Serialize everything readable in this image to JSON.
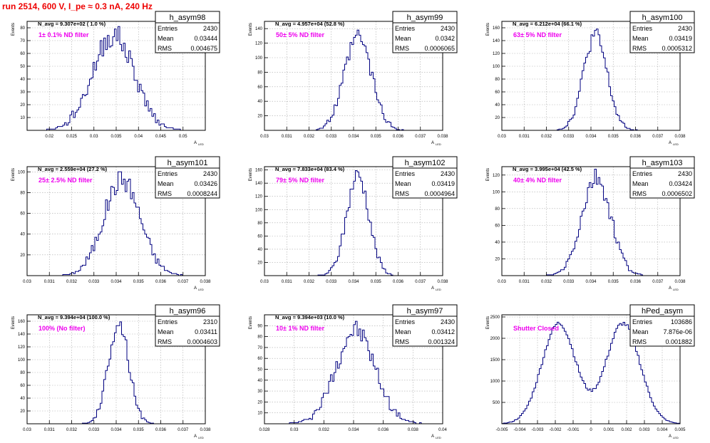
{
  "page": {
    "run_title": "run 2514,   600 V, I_pe ≈ 0.3 nA, 240 Hz",
    "colors": {
      "histogram": "#000080",
      "title": "#ee0000",
      "filter_label": "#ee00ee",
      "grid": "#aaaaaa"
    }
  },
  "chart_data": [
    {
      "type": "histogram",
      "name": "h_asym98",
      "navg": "N_avg = 9.307e+02 ( 1.0 %)",
      "filter": "1± 0.1% ND filter",
      "stats": {
        "entries": "2430",
        "mean": "0.03444",
        "rms": "0.004675"
      },
      "xlabel": "A",
      "xlabel_sub": "LED",
      "ylabel": "Events",
      "xlim": [
        0.015,
        0.055
      ],
      "ylim": [
        0,
        85
      ],
      "xticks": [
        0.02,
        0.025,
        0.03,
        0.035,
        0.04,
        0.045,
        0.05
      ],
      "xtick_labels": [
        "0.02",
        "0.025",
        "0.03",
        "0.035",
        "0.04",
        "0.045",
        "0.05"
      ],
      "yticks": [
        10,
        20,
        30,
        40,
        50,
        60,
        70,
        80
      ],
      "ytick_labels": [
        "10",
        "20",
        "30",
        "40",
        "50",
        "60",
        "70",
        "80"
      ],
      "shape": {
        "centers": [
          0.0344
        ],
        "sigmas": [
          0.0047
        ],
        "weights": [
          1
        ],
        "peak": 74,
        "bins": 100,
        "seed": 98
      }
    },
    {
      "type": "histogram",
      "name": "h_asym99",
      "navg": "N_avg = 4.957e+04 (52.8 %)",
      "filter": "50± 5% ND filter",
      "stats": {
        "entries": "2430",
        "mean": "0.0342",
        "rms": "0.0006065"
      },
      "xlabel": "A",
      "xlabel_sub": "LED",
      "ylabel": "Events",
      "xlim": [
        0.03,
        0.038
      ],
      "ylim": [
        0,
        150
      ],
      "xticks": [
        0.03,
        0.031,
        0.032,
        0.033,
        0.034,
        0.035,
        0.036,
        0.037,
        0.038
      ],
      "xtick_labels": [
        "0.03",
        "0.031",
        "0.032",
        "0.033",
        "0.034",
        "0.035",
        "0.036",
        "0.037",
        "0.038"
      ],
      "yticks": [
        20,
        40,
        60,
        80,
        100,
        120,
        140
      ],
      "ytick_labels": [
        "20",
        "40",
        "60",
        "80",
        "100",
        "120",
        "140"
      ],
      "shape": {
        "centers": [
          0.0342
        ],
        "sigmas": [
          0.00061
        ],
        "weights": [
          1
        ],
        "peak": 128,
        "bins": 100,
        "seed": 99
      }
    },
    {
      "type": "histogram",
      "name": "h_asym100",
      "navg": "N_avg = 6.212e+04 (66.1 %)",
      "filter": "63± 5% ND filter",
      "stats": {
        "entries": "2430",
        "mean": "0.03419",
        "rms": "0.0005312"
      },
      "xlabel": "A",
      "xlabel_sub": "LED",
      "ylabel": "Events",
      "xlim": [
        0.03,
        0.038
      ],
      "ylim": [
        0,
        170
      ],
      "xticks": [
        0.03,
        0.031,
        0.032,
        0.033,
        0.034,
        0.035,
        0.036,
        0.037,
        0.038
      ],
      "xtick_labels": [
        "0.03",
        "0.031",
        "0.032",
        "0.033",
        "0.034",
        "0.035",
        "0.036",
        "0.037",
        "0.038"
      ],
      "yticks": [
        20,
        40,
        60,
        80,
        100,
        120,
        140,
        160
      ],
      "ytick_labels": [
        "20",
        "40",
        "60",
        "80",
        "100",
        "120",
        "140",
        "160"
      ],
      "shape": {
        "centers": [
          0.03419
        ],
        "sigmas": [
          0.00053
        ],
        "weights": [
          1
        ],
        "peak": 148,
        "bins": 100,
        "seed": 100
      }
    },
    {
      "type": "histogram",
      "name": "h_asym101",
      "navg": "N_avg = 2.559e+04 (27.2 %)",
      "filter": "25± 2.5% ND filter",
      "stats": {
        "entries": "2430",
        "mean": "0.03426",
        "rms": "0.0008244"
      },
      "xlabel": "A",
      "xlabel_sub": "LED",
      "ylabel": "Events",
      "xlim": [
        0.03,
        0.038
      ],
      "ylim": [
        0,
        105
      ],
      "xticks": [
        0.03,
        0.031,
        0.032,
        0.033,
        0.034,
        0.035,
        0.036,
        0.037,
        0.038
      ],
      "xtick_labels": [
        "0.03",
        "0.031",
        "0.032",
        "0.033",
        "0.034",
        "0.035",
        "0.036",
        "0.037",
        "0.038"
      ],
      "yticks": [
        20,
        40,
        60,
        80,
        100
      ],
      "ytick_labels": [
        "20",
        "40",
        "60",
        "80",
        "100"
      ],
      "shape": {
        "centers": [
          0.03426
        ],
        "sigmas": [
          0.00082
        ],
        "weights": [
          1
        ],
        "peak": 93,
        "bins": 100,
        "seed": 101
      }
    },
    {
      "type": "histogram",
      "name": "h_asym102",
      "navg": "N_avg = 7.833e+04 (83.4 %)",
      "filter": "79± 5% ND filter",
      "stats": {
        "entries": "2430",
        "mean": "0.03419",
        "rms": "0.0004964"
      },
      "xlabel": "A",
      "xlabel_sub": "LED",
      "ylabel": "Events",
      "xlim": [
        0.03,
        0.038
      ],
      "ylim": [
        0,
        165
      ],
      "xticks": [
        0.03,
        0.031,
        0.032,
        0.033,
        0.034,
        0.035,
        0.036,
        0.037,
        0.038
      ],
      "xtick_labels": [
        "0.03",
        "0.031",
        "0.032",
        "0.033",
        "0.034",
        "0.035",
        "0.036",
        "0.037",
        "0.038"
      ],
      "yticks": [
        20,
        40,
        60,
        80,
        100,
        120,
        140,
        160
      ],
      "ytick_labels": [
        "20",
        "40",
        "60",
        "80",
        "100",
        "120",
        "140",
        "160"
      ],
      "shape": {
        "centers": [
          0.03419
        ],
        "sigmas": [
          0.0005
        ],
        "weights": [
          1
        ],
        "peak": 152,
        "bins": 100,
        "seed": 102
      }
    },
    {
      "type": "histogram",
      "name": "h_asym103",
      "navg": "N_avg = 3.995e+04 (42.5 %)",
      "filter": "40± 4% ND filter",
      "stats": {
        "entries": "2430",
        "mean": "0.03424",
        "rms": "0.0006502"
      },
      "xlabel": "A",
      "xlabel_sub": "LED",
      "ylabel": "Events",
      "xlim": [
        0.03,
        0.038
      ],
      "ylim": [
        0,
        130
      ],
      "xticks": [
        0.03,
        0.031,
        0.032,
        0.033,
        0.034,
        0.035,
        0.036,
        0.037,
        0.038
      ],
      "xtick_labels": [
        "0.03",
        "0.031",
        "0.032",
        "0.033",
        "0.034",
        "0.035",
        "0.036",
        "0.037",
        "0.038"
      ],
      "yticks": [
        20,
        40,
        60,
        80,
        100,
        120
      ],
      "ytick_labels": [
        "20",
        "40",
        "60",
        "80",
        "100",
        "120"
      ],
      "shape": {
        "centers": [
          0.03424
        ],
        "sigmas": [
          0.00065
        ],
        "weights": [
          1
        ],
        "peak": 115,
        "bins": 100,
        "seed": 103
      }
    },
    {
      "type": "histogram",
      "name": "h_asym96",
      "navg": "N_avg = 9.394e+04 (100.0 %)",
      "filter": "100% (No filter)",
      "stats": {
        "entries": "2310",
        "mean": "0.03411",
        "rms": "0.0004603"
      },
      "xlabel": "A",
      "xlabel_sub": "LED",
      "ylabel": "Events",
      "xlim": [
        0.03,
        0.038
      ],
      "ylim": [
        0,
        170
      ],
      "xticks": [
        0.03,
        0.031,
        0.032,
        0.033,
        0.034,
        0.035,
        0.036,
        0.037,
        0.038
      ],
      "xtick_labels": [
        "0.03",
        "0.031",
        "0.032",
        "0.033",
        "0.034",
        "0.035",
        "0.036",
        "0.037",
        "0.038"
      ],
      "yticks": [
        20,
        40,
        60,
        80,
        100,
        120,
        140,
        160
      ],
      "ytick_labels": [
        "20",
        "40",
        "60",
        "80",
        "100",
        "120",
        "140",
        "160"
      ],
      "shape": {
        "centers": [
          0.03411
        ],
        "sigmas": [
          0.00046
        ],
        "weights": [
          1
        ],
        "peak": 158,
        "bins": 100,
        "seed": 96
      }
    },
    {
      "type": "histogram",
      "name": "h_asym97",
      "navg": "N_avg = 9.394e+03 (10.0 %)",
      "filter": "10± 1% ND filter",
      "stats": {
        "entries": "2430",
        "mean": "0.03412",
        "rms": "0.001324"
      },
      "xlabel": "A",
      "xlabel_sub": "LED",
      "ylabel": "Events",
      "xlim": [
        0.028,
        0.04
      ],
      "ylim": [
        0,
        100
      ],
      "xticks": [
        0.028,
        0.03,
        0.032,
        0.034,
        0.036,
        0.038,
        0.04
      ],
      "xtick_labels": [
        "0.028",
        "0.03",
        "0.032",
        "0.034",
        "0.036",
        "0.038",
        "0.04"
      ],
      "yticks": [
        10,
        20,
        30,
        40,
        50,
        60,
        70,
        80,
        90
      ],
      "ytick_labels": [
        "10",
        "20",
        "30",
        "40",
        "50",
        "60",
        "70",
        "80",
        "90"
      ],
      "shape": {
        "centers": [
          0.03412
        ],
        "sigmas": [
          0.00132
        ],
        "weights": [
          1
        ],
        "peak": 86,
        "bins": 100,
        "seed": 97
      }
    },
    {
      "type": "histogram",
      "name": "hPed_asym",
      "navg": "",
      "filter": "Shutter Closed",
      "stats": {
        "entries": "103686",
        "mean": "7.876e-06",
        "rms": "0.001882"
      },
      "xlabel": "A",
      "xlabel_sub": "LED",
      "ylabel": "Events",
      "xlim": [
        -0.005,
        0.005
      ],
      "ylim": [
        0,
        2550
      ],
      "xticks": [
        -0.005,
        -0.004,
        -0.003,
        -0.002,
        -0.001,
        0,
        0.001,
        0.002,
        0.003,
        0.004,
        0.005
      ],
      "xtick_labels": [
        "-0.005",
        "-0.004",
        "-0.003",
        "-0.002",
        "-0.001",
        "0",
        "0.001",
        "0.002",
        "0.003",
        "0.004",
        "0.005"
      ],
      "yticks": [
        500,
        1000,
        1500,
        2000,
        2500
      ],
      "ytick_labels": [
        "500",
        "1000",
        "1500",
        "2000",
        "2500"
      ],
      "shape": {
        "centers": [
          -0.0018,
          0.0018
        ],
        "sigmas": [
          0.00095,
          0.00095
        ],
        "weights": [
          1,
          1
        ],
        "peak": 2350,
        "bins": 100,
        "seed": 77
      }
    }
  ]
}
